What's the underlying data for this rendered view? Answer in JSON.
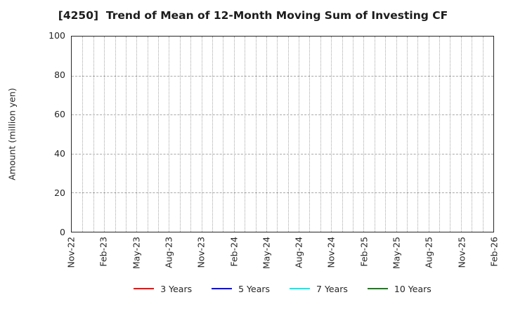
{
  "chart_data": {
    "type": "line",
    "title": "[4250]  Trend of Mean of 12-Month Moving Sum of Investing CF",
    "xlabel": "",
    "ylabel": "Amount (million yen)",
    "ylim": [
      0,
      100
    ],
    "y_ticks": [
      0,
      20,
      40,
      60,
      80,
      100
    ],
    "x_tick_labels": [
      "Nov-22",
      "Feb-23",
      "May-23",
      "Aug-23",
      "Nov-23",
      "Feb-24",
      "May-24",
      "Aug-24",
      "Nov-24",
      "Feb-25",
      "May-25",
      "Aug-25",
      "Nov-25",
      "Feb-26"
    ],
    "months_between_labeled_ticks": 3,
    "total_month_intervals": 39,
    "grid": true,
    "legend_position": "bottom-center",
    "series": [
      {
        "name": "3 Years",
        "color": "#ff0000",
        "values": []
      },
      {
        "name": "5 Years",
        "color": "#0000ff",
        "values": []
      },
      {
        "name": "7 Years",
        "color": "#00efef",
        "values": []
      },
      {
        "name": "10 Years",
        "color": "#1a7d1a",
        "values": []
      }
    ],
    "colors": {
      "grid": "#a8a8a8",
      "frame": "#262626",
      "text": "#262626"
    }
  }
}
